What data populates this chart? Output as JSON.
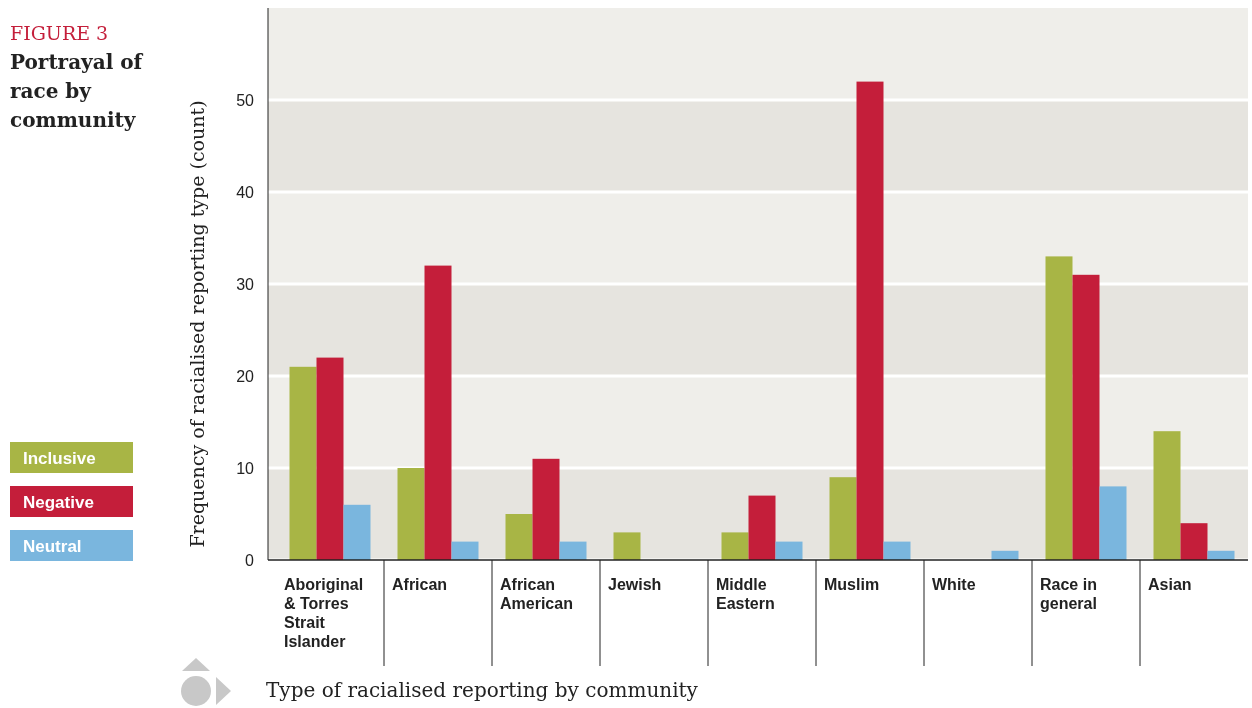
{
  "chart_data": {
    "type": "bar",
    "title": "Portrayal of race by community",
    "annotations": [
      "FIGURE 3"
    ],
    "xlabel": "Type of racialised reporting by community",
    "ylabel": "Frequency of racialised reporting type (count)",
    "categories": [
      "Aboriginal & Torres Strait Islander",
      "African",
      "African American",
      "Jewish",
      "Middle Eastern",
      "Muslim",
      "White",
      "Race in general",
      "Asian"
    ],
    "series": [
      {
        "name": "Inclusive",
        "color": "#a8b545",
        "values": [
          21,
          10,
          5,
          3,
          3,
          9,
          0,
          33,
          14
        ]
      },
      {
        "name": "Negative",
        "color": "#c41e3a",
        "values": [
          22,
          32,
          11,
          0,
          7,
          52,
          0,
          31,
          4
        ]
      },
      {
        "name": "Neutral",
        "color": "#7ab6de",
        "values": [
          6,
          2,
          2,
          0,
          2,
          2,
          1,
          8,
          1
        ]
      }
    ],
    "ylim": [
      0,
      60
    ],
    "yticks": [
      0,
      10,
      20,
      30,
      40,
      50
    ],
    "grid": true,
    "legend": "left"
  }
}
